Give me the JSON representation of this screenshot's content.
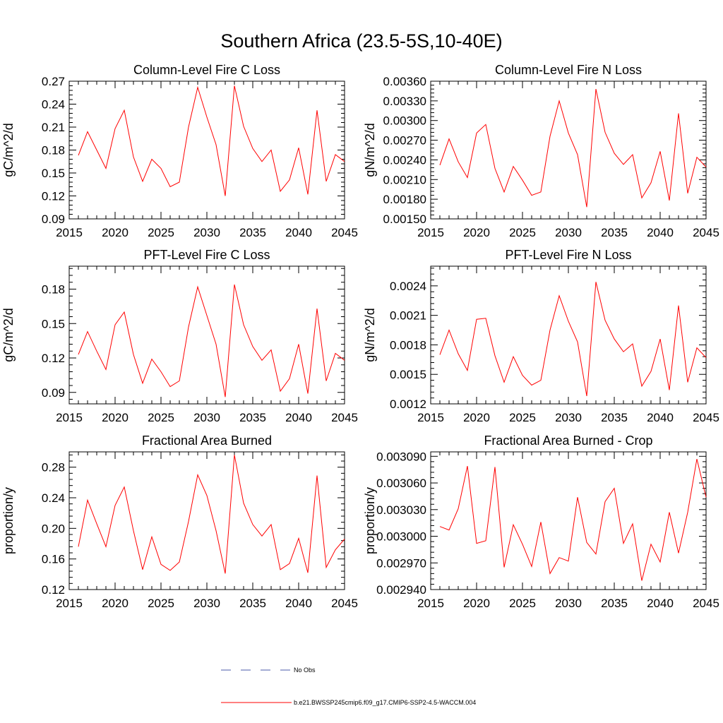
{
  "title": "Southern Africa (23.5-5S,10-40E)",
  "colors": {
    "series": "#ff0000",
    "obs": "#4a5aa8",
    "axis": "#000000"
  },
  "legend": {
    "obs_label": "No Obs",
    "model_label": "b.e21.BWSSP245cmip6.f09_g17.CMIP6-SSP2-4.5-WACCM.004"
  },
  "chart_data": [
    {
      "type": "line",
      "title": "Column-Level Fire C Loss",
      "xlabel": "",
      "ylabel": "gC/m^2/d",
      "xlim": [
        2015,
        2045
      ],
      "ylim": [
        0.09,
        0.27
      ],
      "x_ticks": [
        2015,
        2020,
        2025,
        2030,
        2035,
        2040,
        2045
      ],
      "y_ticks": [
        "0.09",
        "0.12",
        "0.15",
        "0.18",
        "0.21",
        "0.24",
        "0.27"
      ],
      "grid": false,
      "x": [
        2016,
        2017,
        2018,
        2019,
        2020,
        2021,
        2022,
        2023,
        2024,
        2025,
        2026,
        2027,
        2028,
        2029,
        2030,
        2031,
        2032,
        2033,
        2034,
        2035,
        2036,
        2037,
        2038,
        2039,
        2040,
        2041,
        2042,
        2043,
        2044,
        2045
      ],
      "series": [
        {
          "values": [
            0.173,
            0.204,
            0.18,
            0.156,
            0.208,
            0.232,
            0.171,
            0.139,
            0.168,
            0.156,
            0.132,
            0.138,
            0.21,
            0.262,
            0.223,
            0.187,
            0.12,
            0.264,
            0.211,
            0.182,
            0.165,
            0.18,
            0.126,
            0.141,
            0.183,
            0.122,
            0.232,
            0.139,
            0.174,
            0.165
          ]
        }
      ]
    },
    {
      "type": "line",
      "title": "Column-Level Fire N Loss",
      "xlabel": "",
      "ylabel": "gN/m^2/d",
      "xlim": [
        2015,
        2045
      ],
      "ylim": [
        0.0015,
        0.0036
      ],
      "x_ticks": [
        2015,
        2020,
        2025,
        2030,
        2035,
        2040,
        2045
      ],
      "y_ticks": [
        "0.00150",
        "0.00180",
        "0.00210",
        "0.00240",
        "0.00270",
        "0.00300",
        "0.00330",
        "0.00360"
      ],
      "grid": false,
      "x": [
        2016,
        2017,
        2018,
        2019,
        2020,
        2021,
        2022,
        2023,
        2024,
        2025,
        2026,
        2027,
        2028,
        2029,
        2030,
        2031,
        2032,
        2033,
        2034,
        2035,
        2036,
        2037,
        2038,
        2039,
        2040,
        2041,
        2042,
        2043,
        2044,
        2045
      ],
      "series": [
        {
          "values": [
            0.00232,
            0.00272,
            0.00237,
            0.00213,
            0.00281,
            0.00294,
            0.00227,
            0.00191,
            0.0023,
            0.00209,
            0.00186,
            0.00191,
            0.00276,
            0.0033,
            0.00281,
            0.00248,
            0.00168,
            0.00348,
            0.00282,
            0.0025,
            0.00233,
            0.00248,
            0.00182,
            0.00205,
            0.00253,
            0.00178,
            0.00311,
            0.00189,
            0.00244,
            0.00229
          ]
        }
      ]
    },
    {
      "type": "line",
      "title": "PFT-Level Fire C Loss",
      "xlabel": "",
      "ylabel": "gC/m^2/d",
      "xlim": [
        2015,
        2045
      ],
      "ylim": [
        0.08,
        0.2
      ],
      "x_ticks": [
        2015,
        2020,
        2025,
        2030,
        2035,
        2040,
        2045
      ],
      "y_ticks": [
        "0.09",
        "0.12",
        "0.15",
        "0.18"
      ],
      "grid": false,
      "x": [
        2016,
        2017,
        2018,
        2019,
        2020,
        2021,
        2022,
        2023,
        2024,
        2025,
        2026,
        2027,
        2028,
        2029,
        2030,
        2031,
        2032,
        2033,
        2034,
        2035,
        2036,
        2037,
        2038,
        2039,
        2040,
        2041,
        2042,
        2043,
        2044,
        2045
      ],
      "series": [
        {
          "values": [
            0.123,
            0.143,
            0.126,
            0.11,
            0.149,
            0.16,
            0.123,
            0.098,
            0.119,
            0.108,
            0.095,
            0.1,
            0.147,
            0.182,
            0.157,
            0.132,
            0.086,
            0.184,
            0.149,
            0.13,
            0.118,
            0.127,
            0.091,
            0.102,
            0.132,
            0.089,
            0.163,
            0.1,
            0.124,
            0.118
          ]
        }
      ]
    },
    {
      "type": "line",
      "title": "PFT-Level Fire N Loss",
      "xlabel": "",
      "ylabel": "gN/m^2/d",
      "xlim": [
        2015,
        2045
      ],
      "ylim": [
        0.0012,
        0.0026
      ],
      "x_ticks": [
        2015,
        2020,
        2025,
        2030,
        2035,
        2040,
        2045
      ],
      "y_ticks": [
        "0.0012",
        "0.0015",
        "0.0018",
        "0.0021",
        "0.0024"
      ],
      "grid": false,
      "x": [
        2016,
        2017,
        2018,
        2019,
        2020,
        2021,
        2022,
        2023,
        2024,
        2025,
        2026,
        2027,
        2028,
        2029,
        2030,
        2031,
        2032,
        2033,
        2034,
        2035,
        2036,
        2037,
        2038,
        2039,
        2040,
        2041,
        2042,
        2043,
        2044,
        2045
      ],
      "series": [
        {
          "values": [
            0.0017,
            0.00195,
            0.00171,
            0.00154,
            0.00206,
            0.00207,
            0.00169,
            0.00142,
            0.00168,
            0.00149,
            0.00139,
            0.00144,
            0.00195,
            0.0023,
            0.00204,
            0.00183,
            0.00128,
            0.00244,
            0.00205,
            0.00186,
            0.00173,
            0.00181,
            0.00138,
            0.00153,
            0.00186,
            0.00134,
            0.0022,
            0.00142,
            0.00177,
            0.00167
          ]
        }
      ]
    },
    {
      "type": "line",
      "title": "Fractional Area Burned",
      "xlabel": "",
      "ylabel": "proportion/y",
      "xlim": [
        2015,
        2045
      ],
      "ylim": [
        0.12,
        0.3
      ],
      "x_ticks": [
        2015,
        2020,
        2025,
        2030,
        2035,
        2040,
        2045
      ],
      "y_ticks": [
        "0.12",
        "0.16",
        "0.20",
        "0.24",
        "0.28"
      ],
      "grid": false,
      "x": [
        2016,
        2017,
        2018,
        2019,
        2020,
        2021,
        2022,
        2023,
        2024,
        2025,
        2026,
        2027,
        2028,
        2029,
        2030,
        2031,
        2032,
        2033,
        2034,
        2035,
        2036,
        2037,
        2038,
        2039,
        2040,
        2041,
        2042,
        2043,
        2044,
        2045
      ],
      "series": [
        {
          "values": [
            0.176,
            0.237,
            0.206,
            0.176,
            0.23,
            0.254,
            0.197,
            0.146,
            0.189,
            0.153,
            0.145,
            0.156,
            0.209,
            0.27,
            0.243,
            0.197,
            0.141,
            0.296,
            0.233,
            0.205,
            0.19,
            0.205,
            0.146,
            0.154,
            0.187,
            0.142,
            0.269,
            0.149,
            0.172,
            0.186
          ]
        }
      ]
    },
    {
      "type": "line",
      "title": "Fractional Area Burned - Crop",
      "xlabel": "",
      "ylabel": "proportion/y",
      "xlim": [
        2015,
        2045
      ],
      "ylim": [
        0.00294,
        0.003095
      ],
      "x_ticks": [
        2015,
        2020,
        2025,
        2030,
        2035,
        2040,
        2045
      ],
      "y_ticks": [
        "0.002940",
        "0.002970",
        "0.003000",
        "0.003030",
        "0.003060",
        "0.003090"
      ],
      "grid": false,
      "x": [
        2016,
        2017,
        2018,
        2019,
        2020,
        2021,
        2022,
        2023,
        2024,
        2025,
        2026,
        2027,
        2028,
        2029,
        2030,
        2031,
        2032,
        2033,
        2034,
        2035,
        2036,
        2037,
        2038,
        2039,
        2040,
        2041,
        2042,
        2043,
        2044,
        2045
      ],
      "series": [
        {
          "values": [
            0.003011,
            0.003007,
            0.003031,
            0.003079,
            0.002992,
            0.002995,
            0.003078,
            0.002965,
            0.003013,
            0.002991,
            0.002966,
            0.003016,
            0.002958,
            0.002976,
            0.002972,
            0.003044,
            0.002993,
            0.00298,
            0.003039,
            0.003054,
            0.002992,
            0.003014,
            0.00295,
            0.002991,
            0.002971,
            0.003027,
            0.002981,
            0.003027,
            0.003087,
            0.003044
          ]
        }
      ]
    }
  ]
}
